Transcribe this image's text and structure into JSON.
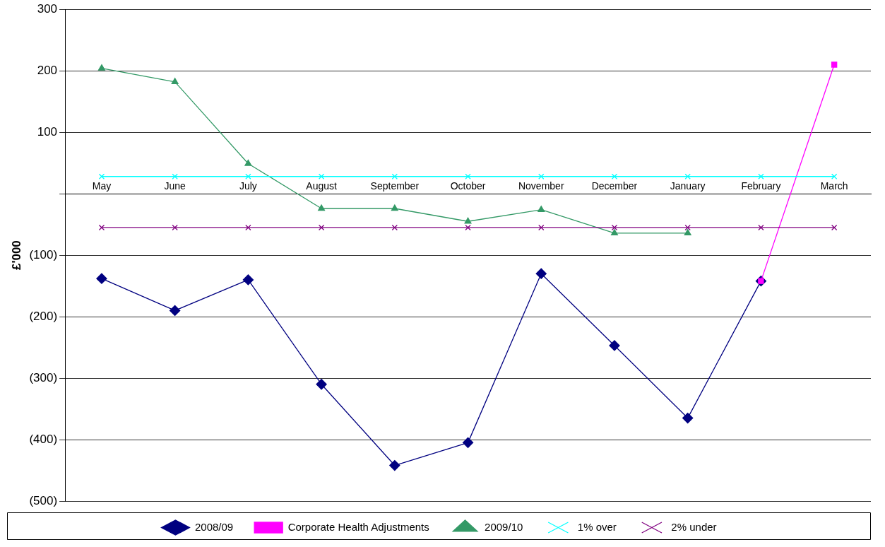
{
  "chart_data": {
    "type": "line",
    "ylabel": "£'000",
    "categories": [
      "May",
      "June",
      "July",
      "August",
      "September",
      "October",
      "November",
      "December",
      "January",
      "February",
      "March"
    ],
    "series": [
      {
        "name": "2008/09",
        "color": "#000080",
        "marker": "diamond",
        "values": [
          -138,
          -190,
          -140,
          -310,
          -442,
          -405,
          -130,
          -247,
          -365,
          -142,
          null
        ]
      },
      {
        "name": "Corporate Health Adjustments",
        "color": "#ff00ff",
        "marker": "square",
        "values": [
          null,
          null,
          null,
          null,
          null,
          null,
          null,
          null,
          null,
          -142,
          210
        ]
      },
      {
        "name": "2009/10",
        "color": "#339966",
        "marker": "triangle",
        "values": [
          204,
          182,
          49,
          -24,
          -24,
          -45,
          -26,
          -64,
          -64,
          null,
          null
        ]
      },
      {
        "name": "1% over",
        "color": "#00ffff",
        "marker": "cross",
        "values": [
          28,
          28,
          28,
          28,
          28,
          28,
          28,
          28,
          28,
          28,
          28
        ]
      },
      {
        "name": "2% under",
        "color": "#800080",
        "marker": "cross",
        "values": [
          -55,
          -55,
          -55,
          -55,
          -55,
          -55,
          -55,
          -55,
          -55,
          -55,
          -55
        ]
      }
    ],
    "ylim": [
      -500,
      300
    ],
    "yticks": [
      300,
      200,
      100,
      {
        "value": 0,
        "label": null
      },
      {
        "value": -100,
        "label": "(100)"
      },
      {
        "value": -200,
        "label": "(200)"
      },
      {
        "value": -300,
        "label": "(300)"
      },
      {
        "value": -400,
        "label": "(400)"
      },
      {
        "value": -500,
        "label": "(500)"
      }
    ],
    "grid": "y",
    "legend": "bottom"
  }
}
